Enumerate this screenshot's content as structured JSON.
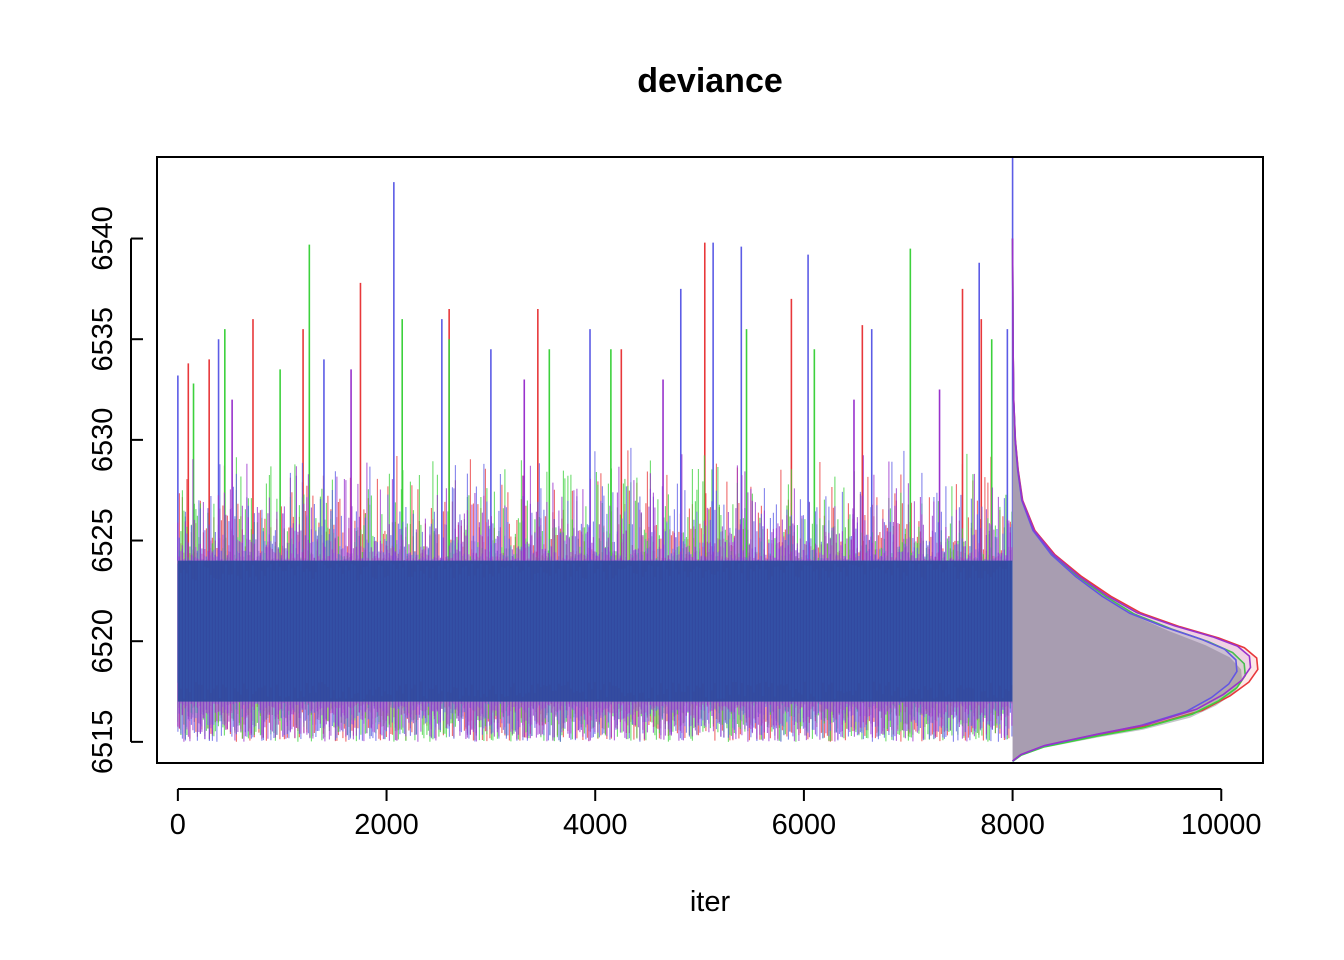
{
  "chart_data": {
    "type": "line",
    "title": "deviance",
    "xlabel": "iter",
    "ylabel": "",
    "xlim": [
      -200,
      10400
    ],
    "ylim": [
      6513.95,
      6544.05
    ],
    "x_ticks": [
      0,
      2000,
      4000,
      6000,
      8000,
      10000
    ],
    "x_tick_labels": [
      "0",
      "2000",
      "4000",
      "6000",
      "8000",
      "10000"
    ],
    "y_ticks": [
      6515,
      6520,
      6525,
      6530,
      6535,
      6540
    ],
    "y_tick_labels": [
      "6515",
      "6520",
      "6525",
      "6530",
      "6535",
      "6540"
    ],
    "grid": false,
    "legend": "none",
    "trace": {
      "iterations": [
        0,
        8000
      ],
      "center": 6520.5,
      "band": [
        6517,
        6524
      ],
      "typical_max": 6530,
      "typical_min": 6515
    },
    "series": [
      {
        "color": "#e8383b",
        "spikes": [
          [
            100,
            6533.8
          ],
          [
            300,
            6534.0
          ],
          [
            720,
            6536.0
          ],
          [
            1200,
            6535.5
          ],
          [
            1750,
            6537.8
          ],
          [
            2600,
            6536.5
          ],
          [
            3450,
            6536.5
          ],
          [
            4250,
            6534.5
          ],
          [
            5050,
            6539.8
          ],
          [
            5880,
            6537.0
          ],
          [
            6560,
            6535.7
          ],
          [
            7520,
            6537.5
          ],
          [
            7700,
            6536.0
          ]
        ]
      },
      {
        "color": "#3dd13d",
        "spikes": [
          [
            150,
            6532.8
          ],
          [
            450,
            6535.5
          ],
          [
            980,
            6533.5
          ],
          [
            1260,
            6539.7
          ],
          [
            2150,
            6536.0
          ],
          [
            2600,
            6535.0
          ],
          [
            3560,
            6534.5
          ],
          [
            4150,
            6534.5
          ],
          [
            5450,
            6535.5
          ],
          [
            6100,
            6534.5
          ],
          [
            7020,
            6539.5
          ],
          [
            7800,
            6535.0
          ]
        ]
      },
      {
        "color": "#5c5ce6",
        "spikes": [
          [
            0,
            6533.2
          ],
          [
            390,
            6535.0
          ],
          [
            1400,
            6534.0
          ],
          [
            2070,
            6542.8
          ],
          [
            2530,
            6536.0
          ],
          [
            3000,
            6534.5
          ],
          [
            3950,
            6535.5
          ],
          [
            4820,
            6537.5
          ],
          [
            5130,
            6539.8
          ],
          [
            5400,
            6539.6
          ],
          [
            6040,
            6539.2
          ],
          [
            6650,
            6535.5
          ],
          [
            7680,
            6538.8
          ],
          [
            7950,
            6535.5
          ],
          [
            8000,
            6544.0
          ]
        ]
      },
      {
        "color": "#9932cc",
        "spikes": [
          [
            520,
            6532.0
          ],
          [
            1660,
            6533.5
          ],
          [
            3320,
            6533.0
          ],
          [
            4650,
            6533.0
          ],
          [
            6480,
            6532.0
          ],
          [
            7300,
            6532.5
          ]
        ]
      }
    ],
    "density": {
      "x_base": 8000,
      "fill": "#c4c6c8",
      "curve": [
        [
          6514.0,
          0
        ],
        [
          6514.3,
          80
        ],
        [
          6514.7,
          300
        ],
        [
          6515.2,
          800
        ],
        [
          6515.6,
          1250
        ],
        [
          6516.2,
          1700
        ],
        [
          6516.8,
          1950
        ],
        [
          6517.4,
          2120
        ],
        [
          6518.0,
          2200
        ],
        [
          6518.6,
          2190
        ],
        [
          6519.2,
          2080
        ],
        [
          6519.8,
          1850
        ],
        [
          6520.5,
          1500
        ],
        [
          6521.3,
          1150
        ],
        [
          6522.2,
          880
        ],
        [
          6523.2,
          620
        ],
        [
          6524.3,
          380
        ],
        [
          6525.5,
          200
        ],
        [
          6527.0,
          90
        ],
        [
          6528.5,
          50
        ],
        [
          6530.0,
          25
        ],
        [
          6532.0,
          10
        ],
        [
          6535.0,
          4
        ],
        [
          6540.0,
          0
        ]
      ],
      "series_peaks": [
        {
          "color": "#e8383b",
          "peak_y": 6518.6,
          "peak_x": 10350
        },
        {
          "color": "#3dd13d",
          "peak_y": 6518.3,
          "peak_x": 10230
        },
        {
          "color": "#5c5ce6",
          "peak_y": 6518.5,
          "peak_x": 10150
        },
        {
          "color": "#9932cc",
          "peak_y": 6518.7,
          "peak_x": 10280
        }
      ]
    }
  }
}
